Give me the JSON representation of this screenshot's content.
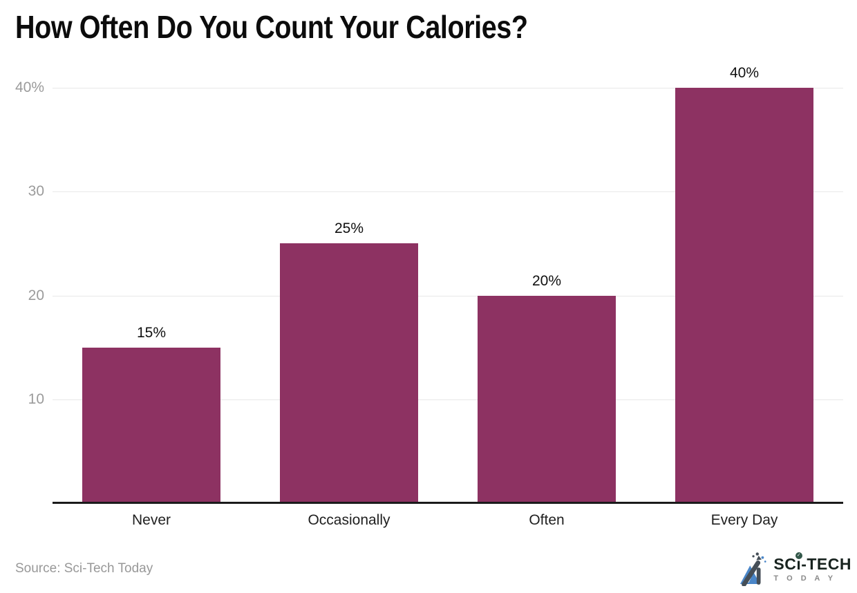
{
  "header": {
    "title": "How Often Do You Count Your Calories?"
  },
  "chart_data": {
    "type": "bar",
    "title": "How Often Do You Count Your Calories?",
    "categories": [
      "Never",
      "Occasionally",
      "Often",
      "Every Day"
    ],
    "values": [
      15,
      25,
      20,
      40
    ],
    "value_labels": [
      "15%",
      "25%",
      "20%",
      "40%"
    ],
    "xlabel": "",
    "ylabel": "",
    "ylim": [
      0,
      40
    ],
    "yticks": [
      {
        "value": 10,
        "label": "10"
      },
      {
        "value": 20,
        "label": "20"
      },
      {
        "value": 30,
        "label": "30"
      },
      {
        "value": 40,
        "label": "40%"
      }
    ],
    "grid": "horizontal",
    "legend": "none",
    "bar_color": "#8d3262"
  },
  "footer": {
    "source": "Source: Sci-Tech Today"
  },
  "logo": {
    "part_sc": "SC",
    "part_i": "ı",
    "part_tech": "-TECH",
    "check": "✓",
    "tagline": "T O D A Y"
  },
  "colors": {
    "bar": "#8d3262",
    "axis": "#1b1b1b",
    "gridline": "#e8e8e8",
    "ytick_text": "#9b9b9b",
    "title_text": "#0c0c0c",
    "source_text": "#989898",
    "logo_blue": "#4a86c8",
    "logo_dark": "#454e57",
    "logo_check_bg": "#33584a"
  }
}
